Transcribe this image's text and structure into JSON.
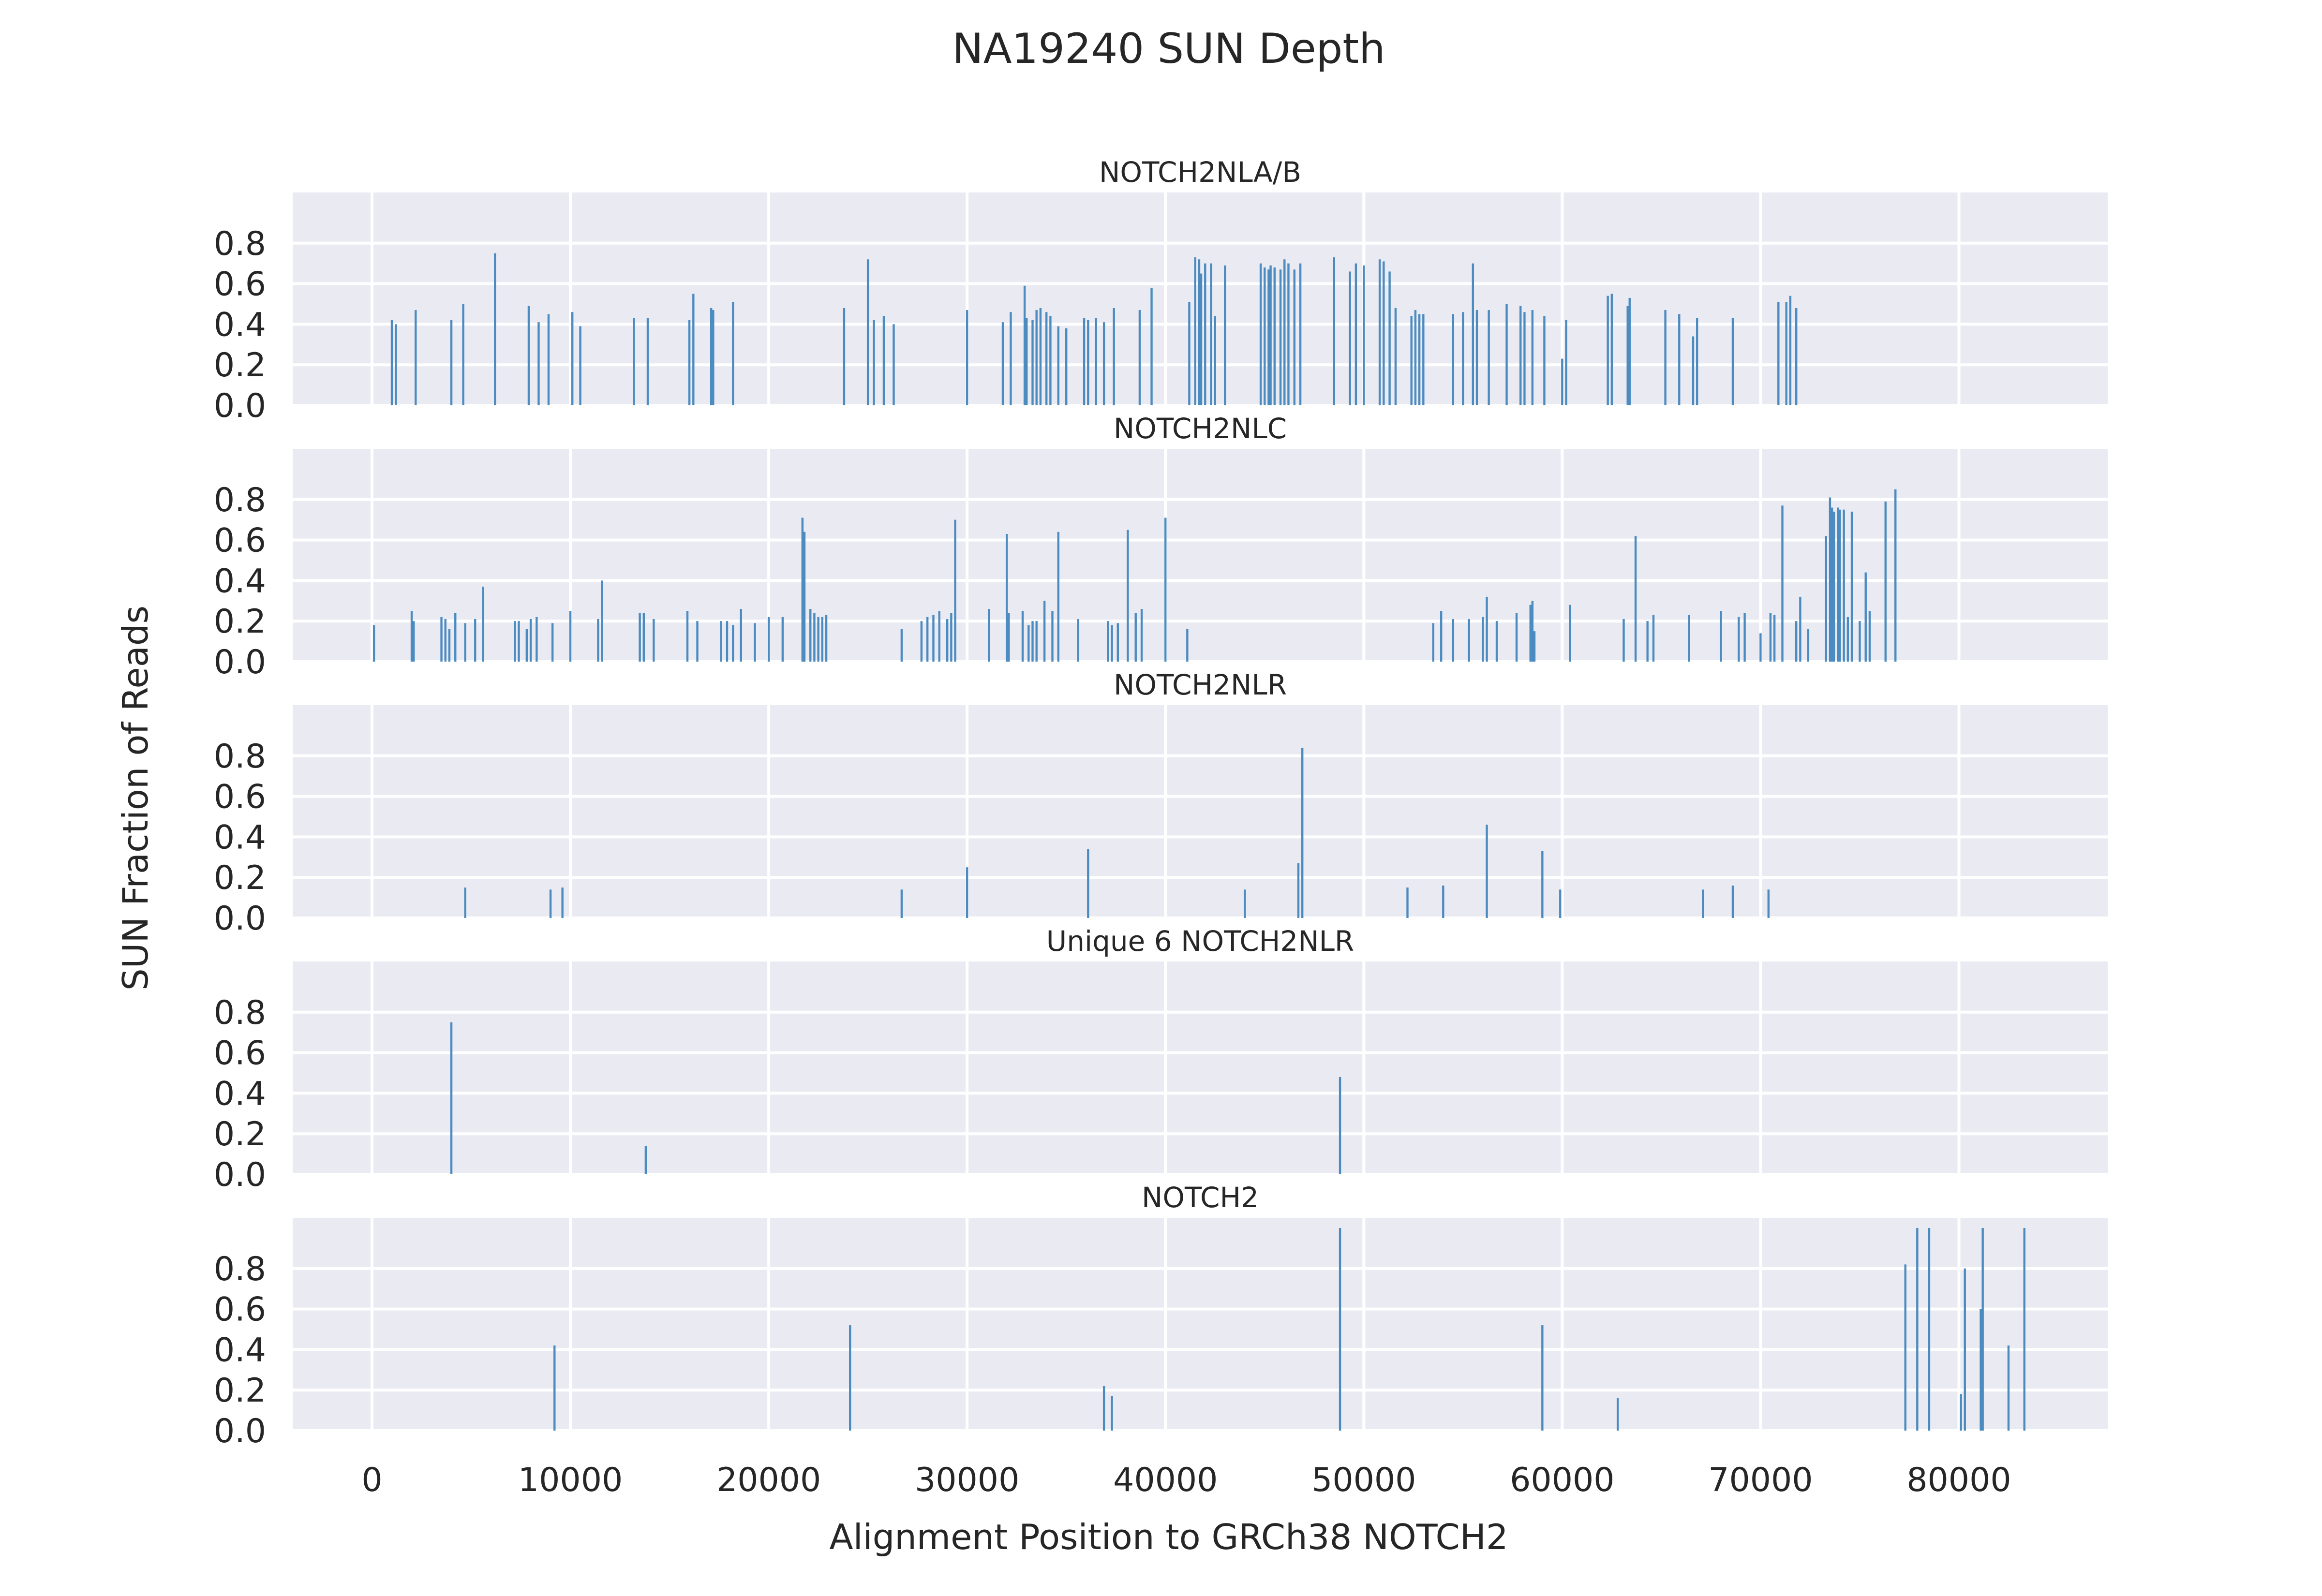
{
  "chart_data": {
    "type": "bar",
    "title": "NA19240 SUN Depth",
    "xlabel": "Alignment Position to GRCh38 NOTCH2",
    "ylabel": "SUN Fraction of Reads",
    "xlim": [
      -4000,
      87500
    ],
    "ylim": [
      0,
      1.05
    ],
    "x_ticks": [
      0,
      10000,
      20000,
      30000,
      40000,
      50000,
      60000,
      70000,
      80000
    ],
    "y_ticks": [
      0.0,
      0.2,
      0.4,
      0.6,
      0.8
    ],
    "y_tick_labels": [
      "0.0",
      "0.2",
      "0.4",
      "0.6",
      "0.8"
    ],
    "grid": true,
    "bar_color": "#4c8bc0",
    "panel_background": "#eaeaf2",
    "panels": [
      {
        "title": "NOTCH2NLA/B",
        "x": [
          1000,
          1200,
          2200,
          4000,
          4600,
          6200,
          7900,
          8400,
          8900,
          10100,
          10500,
          13200,
          13900,
          16000,
          16200,
          17100,
          17200,
          18200,
          23800,
          25000,
          25300,
          25800,
          26300,
          30000,
          31800,
          32200,
          32900,
          33000,
          33300,
          33500,
          33700,
          34000,
          34200,
          34600,
          35000,
          35900,
          36100,
          36500,
          36900,
          37400,
          38700,
          39300,
          41200,
          41500,
          41700,
          41800,
          42000,
          42300,
          42500,
          43000,
          44800,
          45000,
          45200,
          45300,
          45500,
          45800,
          46000,
          46200,
          46500,
          46800,
          48500,
          49300,
          49600,
          50000,
          50800,
          51000,
          51300,
          51600,
          52400,
          52600,
          52800,
          53000,
          54500,
          55000,
          55500,
          55700,
          56300,
          57200,
          57900,
          58100,
          58500,
          59100,
          60000,
          60200,
          62300,
          62500,
          63300,
          63400,
          65200,
          65900,
          66600,
          66800,
          68600,
          70900,
          71300,
          71500,
          71800
        ],
        "values": [
          0.42,
          0.4,
          0.47,
          0.42,
          0.5,
          0.75,
          0.49,
          0.41,
          0.45,
          0.46,
          0.39,
          0.43,
          0.43,
          0.42,
          0.55,
          0.48,
          0.47,
          0.51,
          0.48,
          0.72,
          0.42,
          0.44,
          0.4,
          0.47,
          0.41,
          0.46,
          0.59,
          0.43,
          0.42,
          0.47,
          0.48,
          0.46,
          0.44,
          0.39,
          0.38,
          0.43,
          0.42,
          0.43,
          0.41,
          0.48,
          0.47,
          0.58,
          0.51,
          0.73,
          0.72,
          0.65,
          0.7,
          0.7,
          0.44,
          0.69,
          0.7,
          0.68,
          0.67,
          0.69,
          0.68,
          0.67,
          0.72,
          0.7,
          0.67,
          0.7,
          0.73,
          0.66,
          0.7,
          0.69,
          0.72,
          0.71,
          0.66,
          0.48,
          0.44,
          0.47,
          0.45,
          0.45,
          0.45,
          0.46,
          0.7,
          0.47,
          0.47,
          0.5,
          0.49,
          0.46,
          0.47,
          0.44,
          0.23,
          0.42,
          0.54,
          0.55,
          0.49,
          0.53,
          0.47,
          0.45,
          0.34,
          0.43,
          0.43,
          0.51,
          0.51,
          0.54,
          0.48
        ]
      },
      {
        "title": "NOTCH2NLC",
        "x": [
          100,
          2000,
          2100,
          3500,
          3700,
          3900,
          4200,
          4700,
          5200,
          5600,
          7200,
          7400,
          7800,
          8000,
          8300,
          9100,
          10000,
          11400,
          11600,
          13500,
          13700,
          14200,
          15900,
          16400,
          17600,
          17900,
          18200,
          18600,
          19300,
          20000,
          20700,
          21700,
          21800,
          22100,
          22300,
          22500,
          22700,
          22900,
          26700,
          27700,
          28000,
          28300,
          28600,
          29000,
          29200,
          29400,
          31100,
          32000,
          32100,
          32800,
          33100,
          33300,
          33500,
          33900,
          34300,
          34600,
          35600,
          37100,
          37300,
          37600,
          38100,
          38500,
          38800,
          40000,
          41100,
          53500,
          53900,
          54500,
          55300,
          56000,
          56200,
          56700,
          57700,
          58400,
          58500,
          58600,
          60400,
          63100,
          63700,
          64300,
          64600,
          66400,
          68000,
          68900,
          69200,
          70000,
          70500,
          70700,
          71100,
          71800,
          72000,
          72400,
          73300,
          73500,
          73600,
          73700,
          73900,
          74000,
          74200,
          74400,
          74600,
          75000,
          75300,
          75500,
          76300,
          76800
        ],
        "values": [
          0.18,
          0.25,
          0.2,
          0.22,
          0.21,
          0.16,
          0.24,
          0.19,
          0.21,
          0.37,
          0.2,
          0.2,
          0.16,
          0.21,
          0.22,
          0.19,
          0.25,
          0.21,
          0.4,
          0.24,
          0.24,
          0.21,
          0.25,
          0.2,
          0.2,
          0.2,
          0.18,
          0.26,
          0.19,
          0.22,
          0.22,
          0.71,
          0.64,
          0.26,
          0.24,
          0.22,
          0.22,
          0.23,
          0.16,
          0.2,
          0.22,
          0.23,
          0.25,
          0.21,
          0.24,
          0.7,
          0.26,
          0.63,
          0.24,
          0.25,
          0.18,
          0.2,
          0.2,
          0.3,
          0.25,
          0.64,
          0.21,
          0.2,
          0.18,
          0.19,
          0.65,
          0.24,
          0.26,
          0.71,
          0.16,
          0.19,
          0.25,
          0.21,
          0.21,
          0.22,
          0.32,
          0.2,
          0.24,
          0.28,
          0.3,
          0.15,
          0.28,
          0.21,
          0.62,
          0.2,
          0.23,
          0.23,
          0.25,
          0.22,
          0.24,
          0.14,
          0.24,
          0.23,
          0.77,
          0.2,
          0.32,
          0.16,
          0.62,
          0.81,
          0.76,
          0.74,
          0.76,
          0.75,
          0.75,
          0.22,
          0.74,
          0.2,
          0.44,
          0.25,
          0.79,
          0.85
        ]
      },
      {
        "title": "NOTCH2NLR",
        "x": [
          4700,
          9000,
          9600,
          26700,
          30000,
          36100,
          44000,
          46700,
          46900,
          52200,
          54000,
          56200,
          59000,
          59900,
          67100,
          68600,
          70400
        ],
        "values": [
          0.15,
          0.14,
          0.15,
          0.14,
          0.25,
          0.34,
          0.14,
          0.27,
          0.84,
          0.15,
          0.16,
          0.46,
          0.33,
          0.14,
          0.14,
          0.16,
          0.14
        ]
      },
      {
        "title": "Unique 6 NOTCH2NLR",
        "x": [
          4000,
          13800,
          48800
        ],
        "values": [
          0.75,
          0.14,
          0.48
        ]
      },
      {
        "title": "NOTCH2",
        "x": [
          9200,
          24100,
          36900,
          37300,
          48800,
          59000,
          62800,
          77300,
          77900,
          78500,
          80100,
          80300,
          81100,
          81200,
          82500,
          83300
        ],
        "values": [
          0.42,
          0.52,
          0.22,
          0.17,
          1.0,
          0.52,
          0.16,
          0.82,
          1.0,
          1.0,
          0.18,
          0.8,
          0.6,
          1.0,
          0.42,
          1.0
        ]
      }
    ]
  }
}
